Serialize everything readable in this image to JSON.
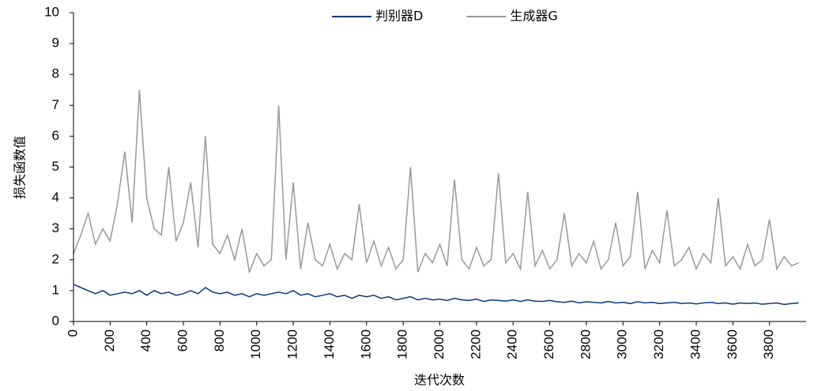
{
  "chart_data": {
    "type": "line",
    "x_label": "迭代次数",
    "y_label": "损失函数值",
    "xlim": [
      0,
      4000
    ],
    "ylim": [
      0,
      10
    ],
    "xticks": [
      0,
      200,
      400,
      600,
      800,
      1000,
      1200,
      1400,
      1600,
      1800,
      2000,
      2200,
      2400,
      2600,
      2800,
      3000,
      3200,
      3400,
      3600,
      3800
    ],
    "yticks": [
      0,
      1,
      2,
      3,
      4,
      5,
      6,
      7,
      8,
      9,
      10
    ],
    "legend": "top",
    "x": [
      0,
      40,
      80,
      120,
      160,
      200,
      240,
      280,
      320,
      360,
      400,
      440,
      480,
      520,
      560,
      600,
      640,
      680,
      720,
      760,
      800,
      840,
      880,
      920,
      960,
      1000,
      1040,
      1080,
      1120,
      1160,
      1200,
      1240,
      1280,
      1320,
      1360,
      1400,
      1440,
      1480,
      1520,
      1560,
      1600,
      1640,
      1680,
      1720,
      1760,
      1800,
      1840,
      1880,
      1920,
      1960,
      2000,
      2040,
      2080,
      2120,
      2160,
      2200,
      2240,
      2280,
      2320,
      2360,
      2400,
      2440,
      2480,
      2520,
      2560,
      2600,
      2640,
      2680,
      2720,
      2760,
      2800,
      2840,
      2880,
      2920,
      2960,
      3000,
      3040,
      3080,
      3120,
      3160,
      3200,
      3240,
      3280,
      3320,
      3360,
      3400,
      3440,
      3480,
      3520,
      3560,
      3600,
      3640,
      3680,
      3720,
      3760,
      3800,
      3840,
      3880,
      3920,
      3960
    ],
    "series": [
      {
        "name": "判别器D",
        "color": "#0a3a7a",
        "values": [
          1.2,
          1.1,
          1.0,
          0.9,
          1.0,
          0.85,
          0.9,
          0.95,
          0.9,
          1.0,
          0.85,
          1.0,
          0.9,
          0.95,
          0.85,
          0.9,
          1.0,
          0.9,
          1.1,
          0.95,
          0.9,
          0.95,
          0.85,
          0.9,
          0.8,
          0.9,
          0.85,
          0.9,
          0.95,
          0.9,
          1.0,
          0.85,
          0.9,
          0.8,
          0.85,
          0.9,
          0.8,
          0.85,
          0.75,
          0.85,
          0.8,
          0.85,
          0.75,
          0.8,
          0.7,
          0.75,
          0.8,
          0.7,
          0.75,
          0.7,
          0.72,
          0.68,
          0.75,
          0.7,
          0.68,
          0.72,
          0.65,
          0.7,
          0.68,
          0.66,
          0.7,
          0.65,
          0.7,
          0.66,
          0.65,
          0.68,
          0.64,
          0.62,
          0.66,
          0.6,
          0.64,
          0.62,
          0.6,
          0.65,
          0.6,
          0.62,
          0.58,
          0.64,
          0.6,
          0.62,
          0.58,
          0.6,
          0.62,
          0.58,
          0.6,
          0.57,
          0.6,
          0.62,
          0.58,
          0.6,
          0.56,
          0.6,
          0.58,
          0.6,
          0.56,
          0.58,
          0.6,
          0.55,
          0.58,
          0.6
        ]
      },
      {
        "name": "生成器G",
        "color": "#999999",
        "values": [
          2.2,
          2.8,
          3.5,
          2.5,
          3.0,
          2.6,
          3.8,
          5.5,
          3.2,
          7.5,
          4.0,
          3.0,
          2.8,
          5.0,
          2.6,
          3.2,
          4.5,
          2.4,
          6.0,
          2.5,
          2.2,
          2.8,
          2.0,
          3.0,
          1.6,
          2.2,
          1.8,
          2.0,
          7.0,
          2.0,
          4.5,
          1.7,
          3.2,
          2.0,
          1.8,
          2.5,
          1.7,
          2.2,
          2.0,
          3.8,
          1.9,
          2.6,
          1.8,
          2.4,
          1.7,
          2.0,
          5.0,
          1.6,
          2.2,
          1.9,
          2.5,
          1.8,
          4.6,
          2.0,
          1.7,
          2.4,
          1.8,
          2.0,
          4.8,
          1.9,
          2.2,
          1.7,
          4.2,
          1.8,
          2.3,
          1.7,
          2.0,
          3.5,
          1.8,
          2.2,
          1.9,
          2.6,
          1.7,
          2.0,
          3.2,
          1.8,
          2.1,
          4.2,
          1.7,
          2.3,
          1.9,
          3.6,
          1.8,
          2.0,
          2.4,
          1.7,
          2.2,
          1.9,
          4.0,
          1.8,
          2.1,
          1.7,
          2.5,
          1.8,
          2.0,
          3.3,
          1.7,
          2.1,
          1.8,
          1.9
        ]
      }
    ]
  }
}
